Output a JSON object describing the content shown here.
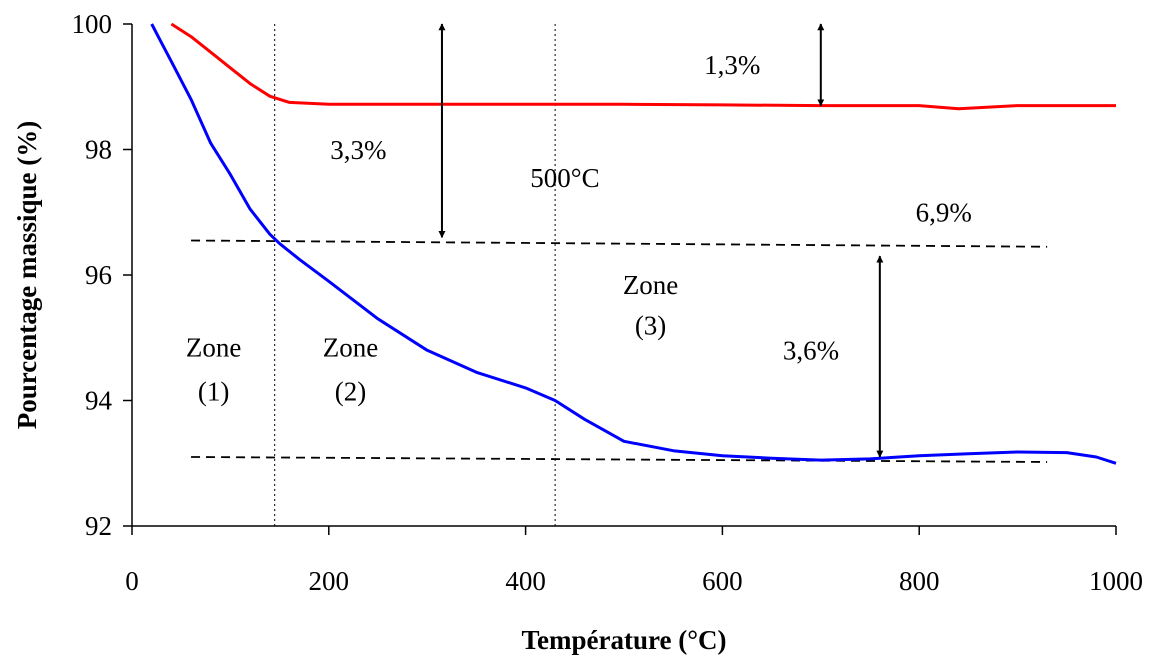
{
  "chart_data": {
    "type": "line",
    "title": "",
    "xlabel": "Température (°C)",
    "ylabel": "Pourcentage massique (%)",
    "xlim": [
      0,
      1000
    ],
    "ylim": [
      92,
      100
    ],
    "x_ticks": [
      0,
      200,
      400,
      600,
      800,
      1000
    ],
    "y_ticks": [
      92,
      94,
      96,
      98,
      100
    ],
    "grid": false,
    "legend": "none",
    "series": [
      {
        "color": "#ff0000",
        "x": [
          40,
          60,
          80,
          100,
          120,
          140,
          160,
          200,
          300,
          400,
          500,
          600,
          700,
          800,
          840,
          900,
          1000
        ],
        "values": [
          100.0,
          99.8,
          99.55,
          99.3,
          99.05,
          98.85,
          98.75,
          98.72,
          98.72,
          98.72,
          98.72,
          98.71,
          98.7,
          98.7,
          98.65,
          98.7,
          98.7
        ]
      },
      {
        "color": "#0000ff",
        "x": [
          20,
          30,
          40,
          60,
          80,
          100,
          120,
          140,
          150,
          170,
          200,
          250,
          300,
          350,
          400,
          430,
          460,
          500,
          550,
          600,
          650,
          700,
          750,
          800,
          850,
          900,
          950,
          980,
          1000
        ],
        "values": [
          100.0,
          99.7,
          99.4,
          98.8,
          98.1,
          97.6,
          97.05,
          96.65,
          96.5,
          96.25,
          95.9,
          95.3,
          94.8,
          94.45,
          94.2,
          94.0,
          93.7,
          93.35,
          93.2,
          93.12,
          93.08,
          93.05,
          93.07,
          93.12,
          93.15,
          93.18,
          93.17,
          93.1,
          93.0
        ]
      }
    ],
    "reference_lines": [
      {
        "style": "dashed",
        "x": [
          60,
          930
        ],
        "y": [
          96.55,
          96.45
        ]
      },
      {
        "style": "dashed",
        "x": [
          60,
          930
        ],
        "y": [
          93.1,
          93.02
        ]
      },
      {
        "style": "dotted",
        "x": [
          145,
          145
        ],
        "y": [
          92,
          100
        ]
      },
      {
        "style": "dotted",
        "x": [
          430,
          430
        ],
        "y": [
          92,
          100
        ]
      }
    ],
    "arrows": [
      {
        "x": 315,
        "y_from": 96.6,
        "y_to": 100
      },
      {
        "x": 700,
        "y_from": 98.7,
        "y_to": 100
      },
      {
        "x": 760,
        "y_from": 93.1,
        "y_to": 96.3
      }
    ],
    "annotations": [
      {
        "id": "pct-1-3",
        "text": "1,3%",
        "x": 610,
        "y": 99.2
      },
      {
        "id": "pct-3-3",
        "text": "3,3%",
        "x": 230,
        "y": 97.85
      },
      {
        "id": "temp-500",
        "text": "500°C",
        "x": 440,
        "y": 97.4
      },
      {
        "id": "pct-6-9",
        "text": "6,9%",
        "x": 825,
        "y": 96.85
      },
      {
        "id": "zone-3-word",
        "text": "Zone",
        "x": 527,
        "y": 95.7
      },
      {
        "id": "zone-3-num",
        "text": "(3)",
        "x": 527,
        "y": 95.05
      },
      {
        "id": "pct-3-6",
        "text": "3,6%",
        "x": 690,
        "y": 94.65
      },
      {
        "id": "zone-1-word",
        "text": "Zone",
        "x": 83,
        "y": 94.7
      },
      {
        "id": "zone-1-num",
        "text": "(1)",
        "x": 83,
        "y": 94.0
      },
      {
        "id": "zone-2-word",
        "text": "Zone",
        "x": 222,
        "y": 94.7
      },
      {
        "id": "zone-2-num",
        "text": "(2)",
        "x": 222,
        "y": 94.0
      }
    ]
  }
}
